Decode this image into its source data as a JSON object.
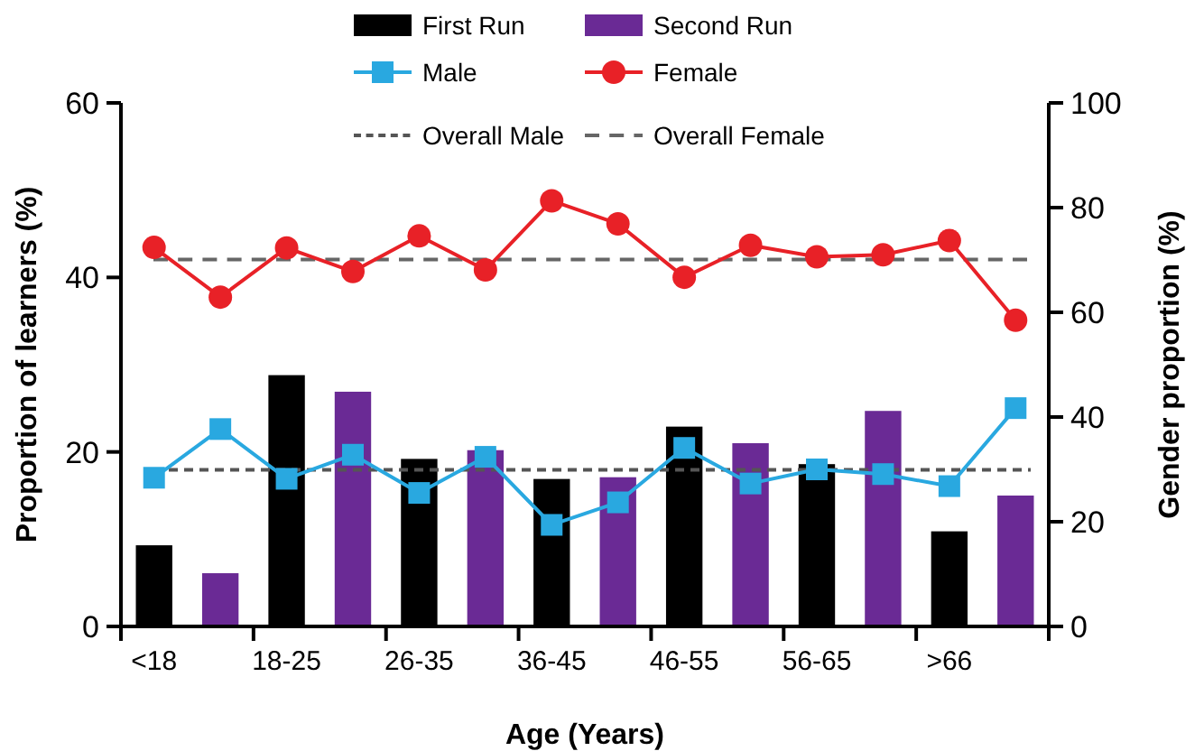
{
  "chart_data": {
    "type": "bar",
    "xlabel": "Age (Years)",
    "ylabel": "Proportion of learners (%)",
    "y2label": "Gender proportion (%)",
    "categories": [
      "<18",
      null,
      "18-25",
      null,
      "26-35",
      null,
      "36-45",
      null,
      "46-55",
      null,
      "56-65",
      null,
      ">66",
      null
    ],
    "ylim": [
      0,
      60
    ],
    "yticks": [
      0,
      20,
      40,
      60
    ],
    "y2lim": [
      0,
      100
    ],
    "y2ticks": [
      0,
      20,
      40,
      60,
      80,
      100
    ],
    "legend": "top",
    "series": [
      {
        "name": "First Run",
        "color": "#000000",
        "values": [
          9.3,
          null,
          28.8,
          null,
          19.2,
          null,
          16.9,
          null,
          22.9,
          null,
          18.6,
          null,
          10.9,
          null
        ]
      },
      {
        "name": "Second Run",
        "color": "#6a2a95",
        "values": [
          null,
          6.1,
          null,
          26.9,
          null,
          20.2,
          null,
          17.1,
          null,
          21.0,
          null,
          24.7,
          null,
          15.0
        ]
      },
      {
        "name": "Male",
        "type": "line",
        "axis": "y2",
        "marker": "square",
        "color": "#29a8e0",
        "values": [
          28.4,
          37.7,
          28.2,
          32.8,
          25.5,
          32.4,
          19.4,
          23.7,
          34.1,
          27.3,
          30.0,
          29.1,
          26.8,
          41.7
        ]
      },
      {
        "name": "Female",
        "type": "line",
        "axis": "y2",
        "marker": "circle",
        "color": "#e82127",
        "values": [
          72.4,
          62.9,
          72.3,
          67.8,
          74.6,
          68.1,
          81.3,
          76.9,
          66.7,
          72.8,
          70.6,
          71.0,
          73.7,
          58.5
        ]
      }
    ],
    "ref_lines": [
      {
        "axis": "y2",
        "value": 29.9,
        "label": "Overall Male",
        "color": "#555555",
        "line_style": "dashed"
      },
      {
        "axis": "y2",
        "value": 70.1,
        "label": "Overall Female",
        "color": "#666666",
        "line_style": "dashed"
      }
    ]
  }
}
